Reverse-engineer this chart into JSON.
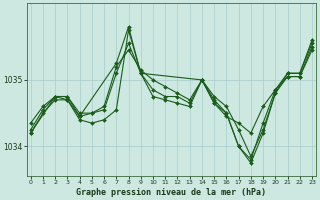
{
  "title": "Graphe pression niveau de la mer (hPa)",
  "bg_color": "#cce8e0",
  "grid_color": "#aacccc",
  "line_color": "#1a5c1a",
  "series": [
    {
      "x": [
        0,
        1,
        2,
        3,
        4,
        5,
        6,
        7,
        8,
        9,
        10,
        11,
        12,
        13,
        14,
        15,
        16,
        17,
        18,
        19,
        20,
        21,
        22,
        23
      ],
      "y": [
        1034.35,
        1034.6,
        1034.75,
        1034.75,
        1034.5,
        1034.5,
        1034.55,
        1035.1,
        1035.55,
        1035.1,
        1034.85,
        1034.75,
        1034.75,
        1034.65,
        1035.0,
        1034.65,
        1034.45,
        1034.35,
        1034.2,
        1034.6,
        1034.85,
        1035.05,
        1035.05,
        1035.45
      ]
    },
    {
      "x": [
        0,
        1,
        2,
        3,
        4,
        5,
        6,
        7,
        8,
        9,
        10,
        11,
        12,
        13,
        14,
        15,
        16,
        17,
        18,
        19,
        20,
        21,
        22,
        23
      ],
      "y": [
        1034.25,
        1034.55,
        1034.75,
        1034.75,
        1034.45,
        1034.5,
        1034.6,
        1035.2,
        1035.45,
        1035.15,
        1035.0,
        1034.9,
        1034.8,
        1034.7,
        1035.0,
        1034.7,
        1034.5,
        1034.0,
        1033.8,
        1034.35,
        1034.85,
        1035.1,
        1035.1,
        1035.55
      ]
    },
    {
      "x": [
        0,
        1,
        2,
        3,
        4,
        5,
        6,
        7,
        8,
        9,
        10,
        11,
        12,
        13,
        14,
        15,
        16,
        17,
        18,
        19,
        20,
        21,
        22,
        23
      ],
      "y": [
        1034.2,
        1034.5,
        1034.7,
        1034.7,
        1034.4,
        1034.35,
        1034.4,
        1034.55,
        1035.75,
        1035.1,
        1034.75,
        1034.7,
        1034.65,
        1034.6,
        1035.0,
        1034.65,
        1034.5,
        1034.0,
        1033.75,
        1034.2,
        1034.8,
        1035.05,
        1035.05,
        1035.5
      ]
    },
    {
      "x": [
        0,
        2,
        3,
        4,
        7,
        8,
        9,
        14,
        15,
        16,
        17,
        18,
        19,
        20,
        21,
        22,
        23
      ],
      "y": [
        1034.2,
        1034.75,
        1034.7,
        1034.45,
        1035.25,
        1035.8,
        1035.1,
        1035.0,
        1034.75,
        1034.6,
        1034.25,
        1033.85,
        1034.25,
        1034.8,
        1035.1,
        1035.1,
        1035.6
      ]
    }
  ],
  "yticks": [
    1034,
    1035
  ],
  "ylim": [
    1033.55,
    1036.15
  ],
  "xlim": [
    -0.3,
    23.3
  ],
  "xticks": [
    0,
    1,
    2,
    3,
    4,
    5,
    6,
    7,
    8,
    9,
    10,
    11,
    12,
    13,
    14,
    15,
    16,
    17,
    18,
    19,
    20,
    21,
    22,
    23
  ]
}
